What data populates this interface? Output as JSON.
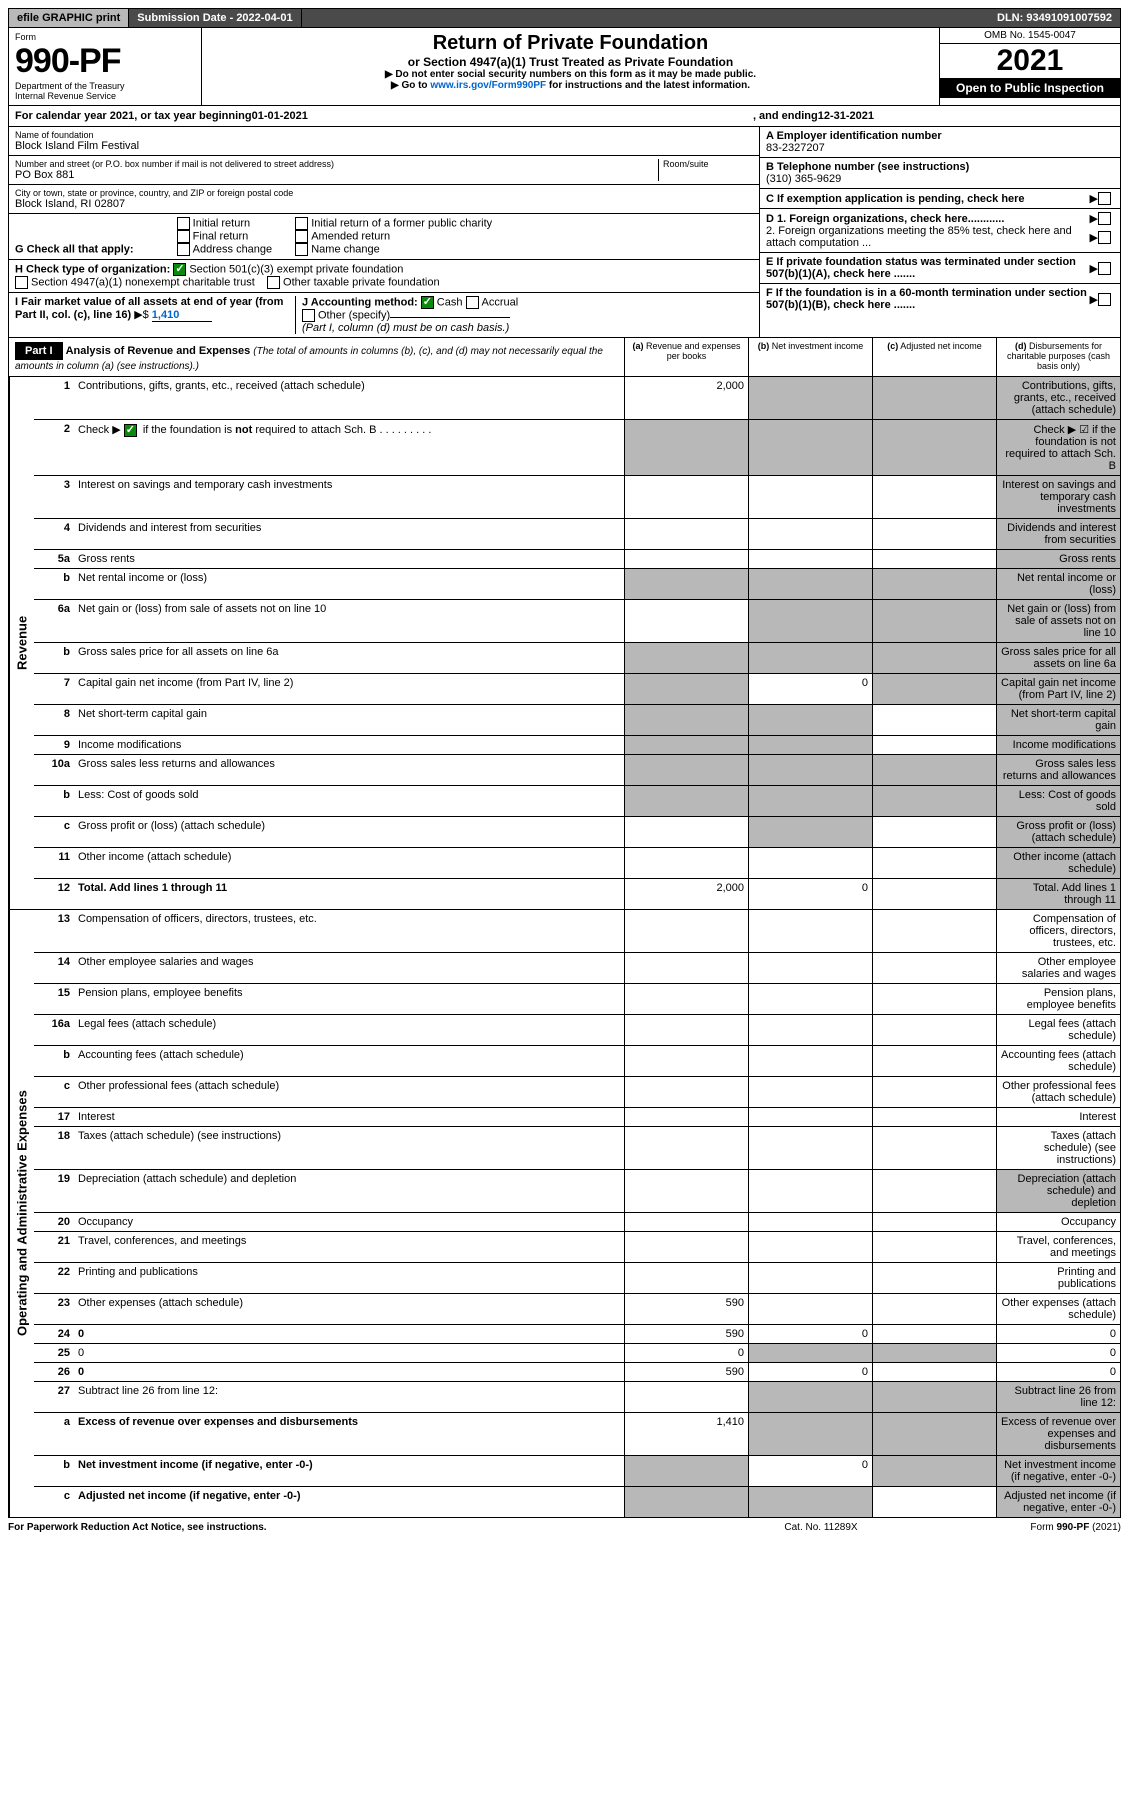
{
  "topbar": {
    "efile": "efile GRAPHIC print",
    "subdate_label": "Submission Date - 2022-04-01",
    "dln": "DLN: 93491091007592"
  },
  "header": {
    "form_label": "Form",
    "form_number": "990-PF",
    "dept": "Department of the Treasury",
    "irs": "Internal Revenue Service",
    "title": "Return of Private Foundation",
    "subtitle": "or Section 4947(a)(1) Trust Treated as Private Foundation",
    "instr1": "▶ Do not enter social security numbers on this form as it may be made public.",
    "instr2_pre": "▶ Go to ",
    "instr2_link": "www.irs.gov/Form990PF",
    "instr2_post": " for instructions and the latest information.",
    "omb": "OMB No. 1545-0047",
    "year": "2021",
    "inspection": "Open to Public Inspection"
  },
  "calyear": {
    "text_pre": "For calendar year 2021, or tax year beginning ",
    "beg": "01-01-2021",
    "mid": ", and ending ",
    "end": "12-31-2021"
  },
  "entity": {
    "name_label": "Name of foundation",
    "name": "Block Island Film Festival",
    "addr_label": "Number and street (or P.O. box number if mail is not delivered to street address)",
    "room_label": "Room/suite",
    "addr": "PO Box 881",
    "city_label": "City or town, state or province, country, and ZIP or foreign postal code",
    "city": "Block Island, RI  02807",
    "a_label": "A Employer identification number",
    "a_val": "83-2327207",
    "b_label": "B Telephone number (see instructions)",
    "b_val": "(310) 365-9629",
    "c_label": "C If exemption application is pending, check here",
    "d1_label": "D 1. Foreign organizations, check here............",
    "d2_label": "2. Foreign organizations meeting the 85% test, check here and attach computation ...",
    "e_label": "E If private foundation status was terminated under section 507(b)(1)(A), check here .......",
    "f_label": "F If the foundation is in a 60-month termination under section 507(b)(1)(B), check here .......",
    "g_label": "G Check all that apply:",
    "g_opts": [
      "Initial return",
      "Final return",
      "Address change",
      "Initial return of a former public charity",
      "Amended return",
      "Name change"
    ],
    "h_label": "H Check type of organization:",
    "h_opt1": "Section 501(c)(3) exempt private foundation",
    "h_opt2": "Section 4947(a)(1) nonexempt charitable trust",
    "h_opt3": "Other taxable private foundation",
    "i_label": "I Fair market value of all assets at end of year (from Part II, col. (c), line 16)",
    "i_val": "1,410",
    "j_label": "J Accounting method:",
    "j_cash": "Cash",
    "j_accrual": "Accrual",
    "j_other": "Other (specify)",
    "j_note": "(Part I, column (d) must be on cash basis.)"
  },
  "part1": {
    "label": "Part I",
    "title": "Analysis of Revenue and Expenses",
    "title_note": " (The total of amounts in columns (b), (c), and (d) may not necessarily equal the amounts in column (a) (see instructions).)",
    "col_a": "Revenue and expenses per books",
    "col_b": "Net investment income",
    "col_c": "Adjusted net income",
    "col_d": "Disbursements for charitable purposes (cash basis only)"
  },
  "sidelabels": {
    "rev": "Revenue",
    "exp": "Operating and Administrative Expenses"
  },
  "rows_rev": [
    {
      "n": "1",
      "d": "Contributions, gifts, grants, etc., received (attach schedule)",
      "a": "2,000",
      "bgrey": true,
      "cgrey": true,
      "dgrey": true
    },
    {
      "n": "2",
      "d": "Check ▶ ☑ if the foundation is not required to attach Sch. B",
      "allgrey": true,
      "note": true
    },
    {
      "n": "3",
      "d": "Interest on savings and temporary cash investments",
      "dgrey": true
    },
    {
      "n": "4",
      "d": "Dividends and interest from securities",
      "dgrey": true
    },
    {
      "n": "5a",
      "d": "Gross rents",
      "dgrey": true
    },
    {
      "n": "b",
      "d": "Net rental income or (loss)",
      "allgrey": true
    },
    {
      "n": "6a",
      "d": "Net gain or (loss) from sale of assets not on line 10",
      "bgrey": true,
      "cgrey": true,
      "dgrey": true
    },
    {
      "n": "b",
      "d": "Gross sales price for all assets on line 6a",
      "allgrey": true
    },
    {
      "n": "7",
      "d": "Capital gain net income (from Part IV, line 2)",
      "agrey": true,
      "b": "0",
      "cgrey": true,
      "dgrey": true
    },
    {
      "n": "8",
      "d": "Net short-term capital gain",
      "agrey": true,
      "bgrey": true,
      "dgrey": true
    },
    {
      "n": "9",
      "d": "Income modifications",
      "agrey": true,
      "bgrey": true,
      "dgrey": true
    },
    {
      "n": "10a",
      "d": "Gross sales less returns and allowances",
      "allgrey": true
    },
    {
      "n": "b",
      "d": "Less: Cost of goods sold",
      "allgrey": true
    },
    {
      "n": "c",
      "d": "Gross profit or (loss) (attach schedule)",
      "bgrey": true,
      "dgrey": true
    },
    {
      "n": "11",
      "d": "Other income (attach schedule)",
      "dgrey": true
    },
    {
      "n": "12",
      "d": "Total. Add lines 1 through 11",
      "bold": true,
      "a": "2,000",
      "b": "0",
      "dgrey": true
    }
  ],
  "rows_exp": [
    {
      "n": "13",
      "d": "Compensation of officers, directors, trustees, etc."
    },
    {
      "n": "14",
      "d": "Other employee salaries and wages"
    },
    {
      "n": "15",
      "d": "Pension plans, employee benefits"
    },
    {
      "n": "16a",
      "d": "Legal fees (attach schedule)"
    },
    {
      "n": "b",
      "d": "Accounting fees (attach schedule)"
    },
    {
      "n": "c",
      "d": "Other professional fees (attach schedule)"
    },
    {
      "n": "17",
      "d": "Interest"
    },
    {
      "n": "18",
      "d": "Taxes (attach schedule) (see instructions)"
    },
    {
      "n": "19",
      "d": "Depreciation (attach schedule) and depletion",
      "dgrey": true
    },
    {
      "n": "20",
      "d": "Occupancy"
    },
    {
      "n": "21",
      "d": "Travel, conferences, and meetings"
    },
    {
      "n": "22",
      "d": "Printing and publications"
    },
    {
      "n": "23",
      "d": "Other expenses (attach schedule)",
      "a": "590"
    },
    {
      "n": "24",
      "d": "0",
      "bold": true,
      "a": "590",
      "b": "0"
    },
    {
      "n": "25",
      "d": "0",
      "a": "0",
      "bgrey": true,
      "cgrey": true
    },
    {
      "n": "26",
      "d": "0",
      "bold": true,
      "a": "590",
      "b": "0"
    },
    {
      "n": "27",
      "d": "Subtract line 26 from line 12:",
      "allgrey_bcd": true
    },
    {
      "n": "a",
      "d": "Excess of revenue over expenses and disbursements",
      "bold": true,
      "a": "1,410",
      "bgrey": true,
      "cgrey": true,
      "dgrey": true
    },
    {
      "n": "b",
      "d": "Net investment income (if negative, enter -0-)",
      "bold": true,
      "agrey": true,
      "b": "0",
      "cgrey": true,
      "dgrey": true
    },
    {
      "n": "c",
      "d": "Adjusted net income (if negative, enter -0-)",
      "bold": true,
      "agrey": true,
      "bgrey": true,
      "dgrey": true
    }
  ],
  "footer": {
    "left": "For Paperwork Reduction Act Notice, see instructions.",
    "center": "Cat. No. 11289X",
    "right": "Form 990-PF (2021)"
  },
  "colors": {
    "grey_bg": "#b8b8b8",
    "dark_bg": "#4a4a4a",
    "link": "#0066cc",
    "check_green": "#0a8a0a"
  }
}
